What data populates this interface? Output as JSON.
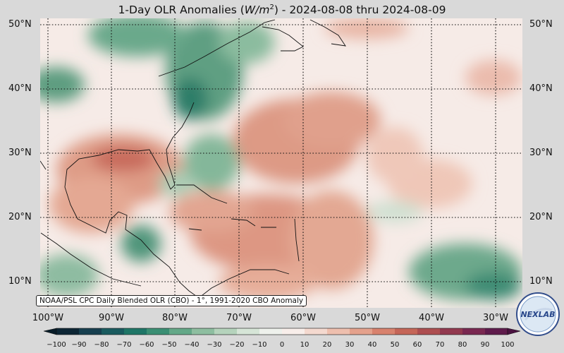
{
  "title": {
    "prefix": "1-Day OLR Anomalies (",
    "unit_base": "W/m",
    "unit_exp": "2",
    "suffix": ") - 2024-08-08 thru 2024-08-09"
  },
  "source_label": "NOAA/PSL CPC Daily Blended OLR (CBO) - 1°, 1991-2020 CBO Anomaly",
  "lat_labels": [
    "50°N",
    "40°N",
    "30°N",
    "20°N",
    "10°N"
  ],
  "lon_labels": [
    "100°W",
    "90°W",
    "80°W",
    "70°W",
    "60°W",
    "50°W",
    "40°W",
    "30°W"
  ],
  "colorbar": {
    "ticks": [
      "−100",
      "−90",
      "−80",
      "−70",
      "−60",
      "−50",
      "−40",
      "−30",
      "−20",
      "−10",
      "0",
      "10",
      "20",
      "30",
      "40",
      "50",
      "60",
      "70",
      "80",
      "90",
      "100"
    ],
    "colors": [
      "#0d2635",
      "#173f4f",
      "#1a5b5f",
      "#1f7667",
      "#3b8f74",
      "#64a888",
      "#8ebea0",
      "#b5d3bc",
      "#d6e5d7",
      "#eef1ec",
      "#f8eeea",
      "#f4d9cf",
      "#eebfae",
      "#e4a18c",
      "#d8826e",
      "#c56658",
      "#ad4e50",
      "#92394f",
      "#7a2851",
      "#5f1b4c"
    ]
  },
  "logo": {
    "text": "NEXLAB",
    "icon": "nexlab-logo-globe-icon"
  },
  "colors": {
    "background": "#d9d9d9",
    "neutral": "#f7eeeb",
    "negative": "#3b8f74",
    "positive": "#d8826e"
  }
}
